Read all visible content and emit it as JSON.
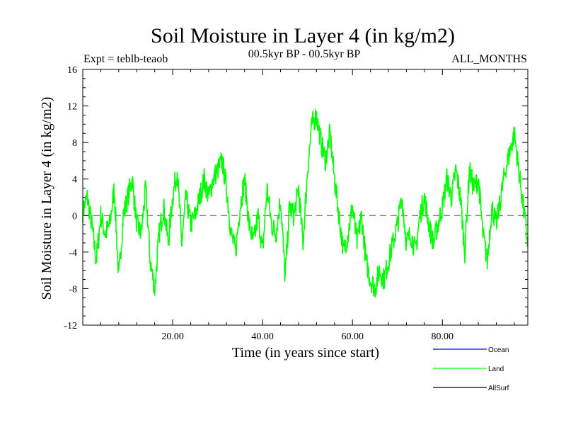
{
  "chart_data": {
    "type": "line",
    "title": "Soil Moisture in Layer 4 (in kg/m2)",
    "subtitle_left": "Expt = teblb-teaob",
    "subtitle_center": "00.5kyr BP - 00.5kyr BP",
    "subtitle_right": "ALL_MONTHS",
    "xlabel": "Time (in years since start)",
    "ylabel": "Soil Moisture in Layer 4 (in kg/m2)",
    "xlim": [
      0,
      99
    ],
    "ylim": [
      -12,
      16
    ],
    "x_ticks": [
      20,
      40,
      60,
      80
    ],
    "x_tick_labels": [
      "20.00",
      "40.00",
      "60.00",
      "80.00"
    ],
    "y_ticks": [
      -12,
      -8,
      -4,
      0,
      4,
      8,
      12,
      16
    ],
    "y_tick_labels": [
      "-12",
      "-8",
      "-4",
      "0",
      "4",
      "8",
      "12",
      "16"
    ],
    "zero_line": 0,
    "legend": [
      {
        "name": "Ocean",
        "color": "#0000ff"
      },
      {
        "name": "Land",
        "color": "#00ff00"
      },
      {
        "name": "AllSurf",
        "color": "#000000"
      }
    ],
    "series": [
      {
        "name": "Land",
        "color": "#00ff00",
        "x": [
          0,
          1,
          2,
          3,
          4,
          5,
          6,
          7,
          8,
          9,
          10,
          11,
          12,
          13,
          14,
          15,
          16,
          17,
          18,
          19,
          20,
          21,
          22,
          23,
          24,
          25,
          26,
          27,
          28,
          29,
          30,
          31,
          32,
          33,
          34,
          35,
          36,
          37,
          38,
          39,
          40,
          41,
          42,
          43,
          44,
          45,
          46,
          47,
          48,
          49,
          50,
          51,
          52,
          53,
          54,
          55,
          56,
          57,
          58,
          59,
          60,
          61,
          62,
          63,
          64,
          65,
          66,
          67,
          68,
          69,
          70,
          71,
          72,
          73,
          74,
          75,
          76,
          77,
          78,
          79,
          80,
          81,
          82,
          83,
          84,
          85,
          86,
          87,
          88,
          89,
          90,
          91,
          92,
          93,
          94,
          95,
          96,
          97,
          98,
          99
        ],
        "values": [
          0.5,
          2,
          -1,
          -5,
          0,
          -2,
          -1,
          3,
          -7,
          0,
          2,
          4,
          -1,
          -2,
          3,
          -5,
          -8,
          -2,
          1,
          -3,
          2,
          5,
          -3,
          2,
          -1,
          0,
          2,
          4,
          2,
          4,
          5,
          6,
          3,
          -2,
          -4,
          1,
          4,
          -1,
          -3,
          0,
          -4,
          3,
          -1,
          -2,
          2,
          -7,
          1,
          0,
          3,
          -3,
          5,
          10,
          11,
          8,
          6,
          9,
          4,
          0,
          -4,
          -2,
          1,
          -3,
          0,
          -5,
          -7,
          -8,
          -6,
          -7,
          -5,
          -3,
          -1,
          2,
          -3,
          -2,
          -4,
          0,
          2,
          -1,
          -3,
          -1,
          1,
          4,
          2,
          5,
          2,
          -4,
          5,
          3,
          4,
          -2,
          -5,
          1,
          -1,
          2,
          5,
          7,
          9,
          5,
          1,
          -3
        ]
      }
    ]
  }
}
